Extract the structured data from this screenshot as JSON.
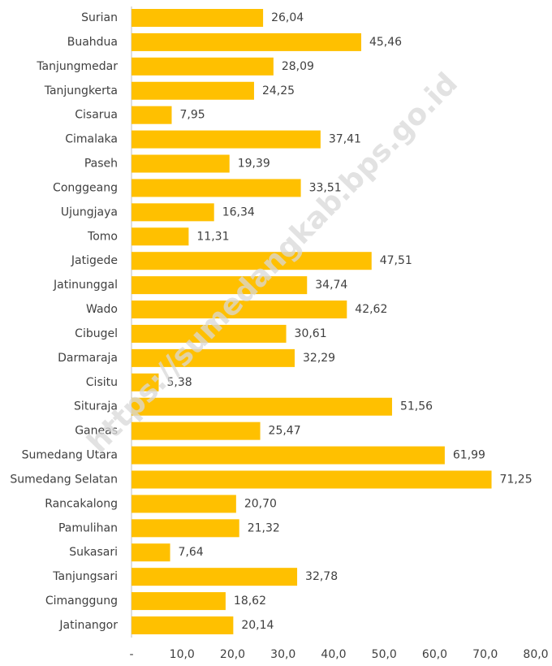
{
  "chart_data": {
    "type": "bar",
    "orientation": "horizontal",
    "categories": [
      "Surian",
      "Buahdua",
      "Tanjungmedar",
      "Tanjungkerta",
      "Cisarua",
      "Cimalaka",
      "Paseh",
      "Conggeang",
      "Ujungjaya",
      "Tomo",
      "Jatigede",
      "Jatinunggal",
      "Wado",
      "Cibugel",
      "Darmaraja",
      "Cisitu",
      "Situraja",
      "Ganeas",
      "Sumedang Utara",
      "Sumedang Selatan",
      "Rancakalong",
      "Pamulihan",
      "Sukasari",
      "Tanjungsari",
      "Cimanggung",
      "Jatinangor"
    ],
    "values": [
      26.04,
      45.46,
      28.09,
      24.25,
      7.95,
      37.41,
      19.39,
      33.51,
      16.34,
      11.31,
      47.51,
      34.74,
      42.62,
      30.61,
      32.29,
      5.38,
      51.56,
      25.47,
      61.99,
      71.25,
      20.7,
      21.32,
      7.64,
      32.78,
      18.62,
      20.14
    ],
    "value_labels": [
      "26,04",
      "45,46",
      "28,09",
      "24,25",
      "7,95",
      "37,41",
      "19,39",
      "33,51",
      "16,34",
      "11,31",
      "47,51",
      "34,74",
      "42,62",
      "30,61",
      "32,29",
      "5,38",
      "51,56",
      "25,47",
      "61,99",
      "71,25",
      "20,70",
      "21,32",
      "7,64",
      "32,78",
      "18,62",
      "20,14"
    ],
    "color": "#FFC000",
    "xlim": [
      0,
      80
    ],
    "xticks": [
      {
        "value": 0,
        "label": "-"
      },
      {
        "value": 10,
        "label": "10,0"
      },
      {
        "value": 20,
        "label": "20,0"
      },
      {
        "value": 30,
        "label": "30,0"
      },
      {
        "value": 40,
        "label": "40,0"
      },
      {
        "value": 50,
        "label": "50,0"
      },
      {
        "value": 60,
        "label": "60,0"
      },
      {
        "value": 70,
        "label": "70,0"
      },
      {
        "value": 80,
        "label": "80,0"
      }
    ],
    "watermark": "https://sumedangkab.bps.go.id"
  }
}
